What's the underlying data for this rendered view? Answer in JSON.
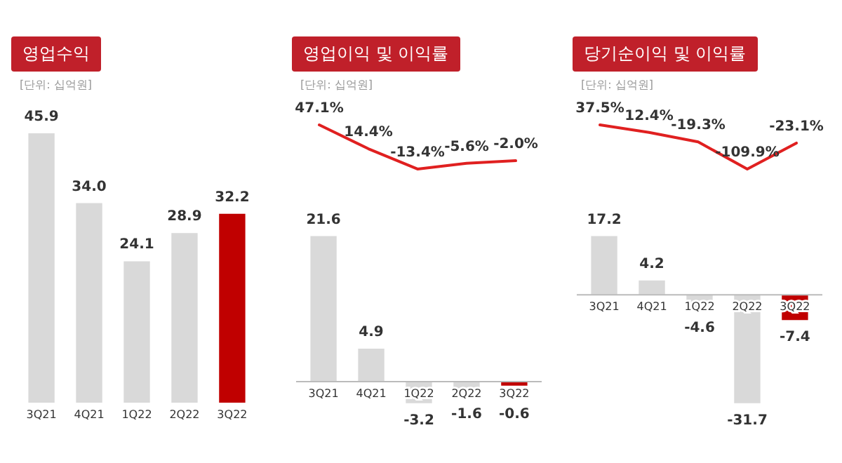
{
  "chart_data": [
    {
      "type": "bar",
      "title": "영업수익",
      "annotations": [
        "[단위: 십억원]"
      ],
      "categories": [
        "3Q21",
        "4Q21",
        "1Q22",
        "2Q22",
        "3Q22"
      ],
      "tick_labels": "x",
      "colors": [
        "#d9d9d9",
        "#d9d9d9",
        "#d9d9d9",
        "#d9d9d9",
        "#c00000"
      ],
      "values": [
        45.9,
        34.0,
        24.1,
        28.9,
        32.2
      ],
      "value_labels": [
        "45.9",
        "34.0",
        "24.1",
        "28.9",
        "32.2"
      ]
    },
    {
      "type": "line",
      "title": "영업이익 및 이익률",
      "annotations": [
        "[단위: 십억원]"
      ],
      "categories": [
        null,
        null,
        null,
        null,
        null
      ],
      "tick_labels": false,
      "series": [
        {
          "color": "#e02020",
          "values": [
            47.1,
            14.4,
            -13.4,
            -5.6,
            -2.0
          ],
          "value_labels": [
            "47.1%",
            "14.4%",
            "-13.4%",
            "-5.6%",
            "-2.0%"
          ]
        }
      ]
    },
    {
      "type": "bar",
      "categories": [
        "3Q21",
        "4Q21",
        "1Q22",
        "2Q22",
        "3Q22"
      ],
      "tick_labels": "x",
      "colors": [
        "#d9d9d9",
        "#d9d9d9",
        "#d9d9d9",
        "#d9d9d9",
        "#c00000"
      ],
      "values": [
        21.6,
        4.9,
        -3.2,
        -1.6,
        -0.6
      ],
      "value_labels": [
        "21.6",
        "4.9",
        "-3.2",
        "-1.6",
        "-0.6"
      ]
    },
    {
      "type": "line",
      "title": "당기순이익 및 이익률",
      "annotations": [
        "[단위: 십억원]"
      ],
      "categories": [
        null,
        null,
        null,
        null,
        null
      ],
      "tick_labels": false,
      "series": [
        {
          "color": "#e02020",
          "values": [
            37.5,
            12.4,
            -19.3,
            -109.9,
            -23.1
          ],
          "value_labels": [
            "37.5%",
            "12.4%",
            "-19.3%",
            "-109.9%",
            "-23.1%"
          ]
        }
      ]
    },
    {
      "type": "bar",
      "categories": [
        "3Q21",
        "4Q21",
        "1Q22",
        "2Q22",
        "3Q22"
      ],
      "tick_labels": "x",
      "colors": [
        "#d9d9d9",
        "#d9d9d9",
        "#d9d9d9",
        "#d9d9d9",
        "#c00000"
      ],
      "values": [
        17.2,
        4.2,
        -4.6,
        -31.7,
        -7.4
      ],
      "value_labels": [
        "17.2",
        "4.2",
        "-4.6",
        "-31.7",
        "-7.4"
      ]
    }
  ]
}
